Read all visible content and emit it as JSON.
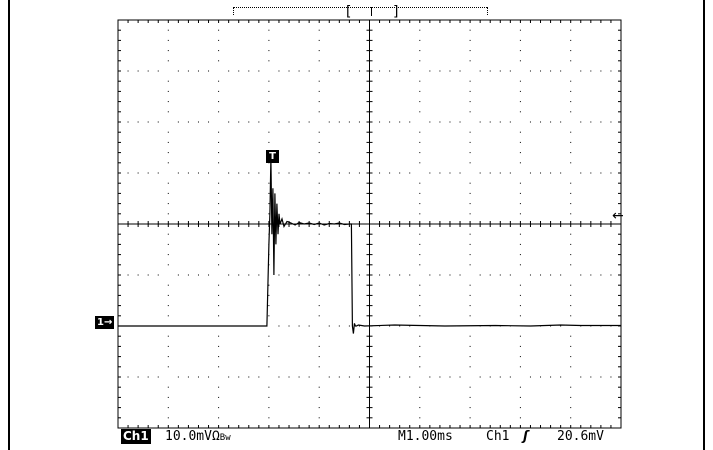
{
  "status": {
    "channel_badge": "Ch1",
    "channel_scale": "10.0mVΩ",
    "channel_scale_suffix": "Bw",
    "timebase": "M1.00ms",
    "trigger_source": "Ch1",
    "trigger_slope_glyph": "ʃ",
    "trigger_level": "20.6mV"
  },
  "markers": {
    "channel_marker": "1→",
    "trigger_marker": "T",
    "trigger_level_arrow": "←"
  },
  "chart_data": {
    "type": "line",
    "title": "",
    "xlabel": "",
    "ylabel": "",
    "x_units": "ms",
    "y_units": "mV",
    "grid": true,
    "x_divisions": 10,
    "y_divisions": 8,
    "volts_per_div_mV": 10.0,
    "time_per_div_ms": 1.0,
    "xlim": [
      -5.0,
      5.0
    ],
    "ylim": [
      -40.0,
      40.0
    ],
    "series": [
      {
        "x": [
          -5.0,
          -2.04,
          -2.0,
          -1.98,
          -1.96,
          -1.94,
          -1.92,
          -1.9,
          -1.88,
          -1.86,
          -1.84,
          -1.82,
          -1.8,
          -1.78,
          -1.74,
          -1.7,
          -1.64,
          -1.56,
          -1.48,
          -1.4,
          -1.3,
          -1.2,
          -1.1,
          -1.0,
          -0.9,
          -0.8,
          -0.7,
          -0.6,
          -0.5,
          -0.4,
          -0.36,
          -0.34,
          -0.32,
          -0.3,
          -0.28,
          -0.26,
          -0.22,
          -0.1,
          0.5,
          1.5,
          2.5,
          3.2,
          3.8,
          4.2,
          4.6,
          5.0
        ],
        "y": [
          -20.0,
          -20.0,
          -4.0,
          2.0,
          13.0,
          -2.0,
          7.0,
          -10.0,
          6.0,
          -4.0,
          4.0,
          -2.0,
          2.0,
          0.0,
          1.0,
          -0.5,
          0.5,
          0.2,
          -0.2,
          0.3,
          0.0,
          0.2,
          -0.1,
          0.2,
          -0.2,
          0.1,
          0.0,
          0.2,
          -0.1,
          0.0,
          0.0,
          -20.0,
          -21.5,
          -19.5,
          -20.0,
          -20.0,
          -19.8,
          -20.0,
          -19.8,
          -20.0,
          -19.9,
          -20.0,
          -19.8,
          -19.9,
          -19.9,
          -19.9
        ]
      }
    ]
  }
}
